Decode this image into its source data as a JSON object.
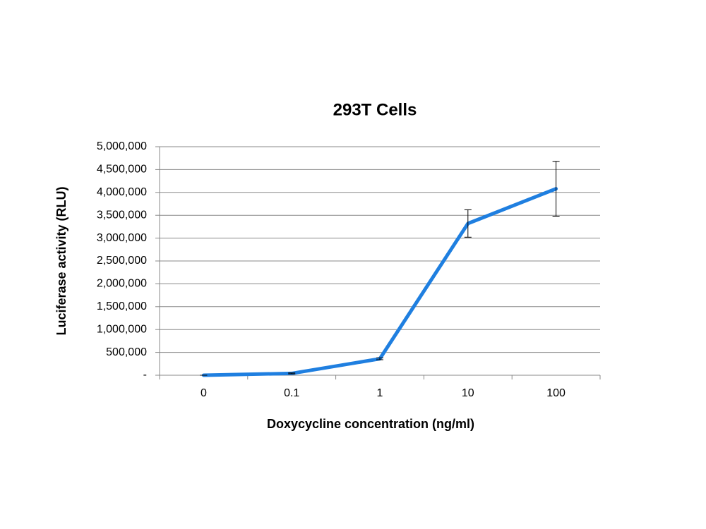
{
  "chart_data": {
    "type": "line",
    "title": "293T Cells",
    "x_label": "Doxycycline concentration (ng/ml)",
    "y_label": "Luciferase activity (RLU)",
    "categories": [
      "0",
      "0.1",
      "1",
      "10",
      "100"
    ],
    "series": [
      {
        "name": "Luciferase activity",
        "color": "#1f7fe0",
        "values": [
          0,
          40000,
          360000,
          3320000,
          4080000
        ],
        "errors": [
          0,
          10000,
          20000,
          300000,
          600000
        ]
      }
    ],
    "ylim": [
      0,
      5000000
    ],
    "yticks": [
      {
        "value": 0,
        "label": "-"
      },
      {
        "value": 500000,
        "label": "500,000"
      },
      {
        "value": 1000000,
        "label": "1,000,000"
      },
      {
        "value": 1500000,
        "label": "1,500,000"
      },
      {
        "value": 2000000,
        "label": "2,000,000"
      },
      {
        "value": 2500000,
        "label": "2,500,000"
      },
      {
        "value": 3000000,
        "label": "3,000,000"
      },
      {
        "value": 3500000,
        "label": "3,500,000"
      },
      {
        "value": 4000000,
        "label": "4,000,000"
      },
      {
        "value": 4500000,
        "label": "4,500,000"
      },
      {
        "value": 5000000,
        "label": "5,000,000"
      }
    ],
    "grid": true
  }
}
